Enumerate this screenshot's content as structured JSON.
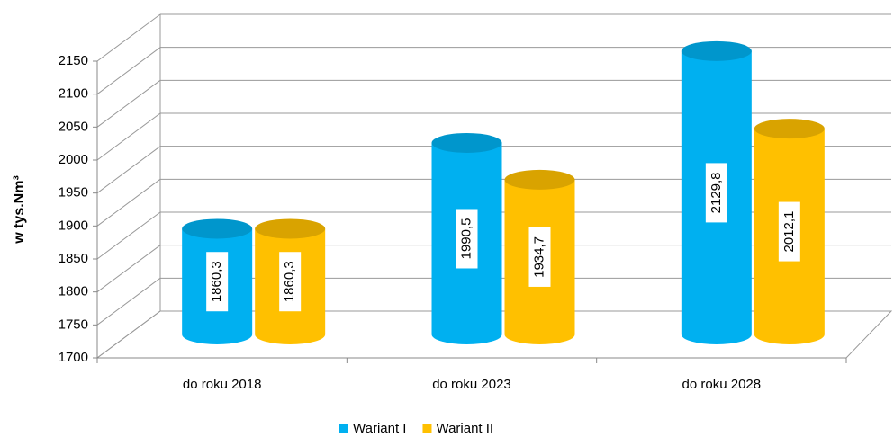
{
  "chart_data": {
    "type": "bar",
    "y_label": "w tys.Nm³",
    "categories": [
      "do roku 2018",
      "do roku 2023",
      "do roku 2028"
    ],
    "series": [
      {
        "name": "Wariant I",
        "color": "#00b0f0",
        "values": [
          1860.3,
          1990.5,
          2129.8
        ],
        "value_labels": [
          "1860,3",
          "1990,5",
          "2129,8"
        ]
      },
      {
        "name": "Wariant II",
        "color": "#ffc000",
        "values": [
          1860.3,
          1934.7,
          2012.1
        ],
        "value_labels": [
          "1860,3",
          "1934,7",
          "2012,1"
        ]
      }
    ],
    "ylim": [
      1700,
      2150
    ],
    "yticks": [
      1700,
      1750,
      1800,
      1850,
      1900,
      1950,
      2000,
      2050,
      2100,
      2150
    ],
    "grid": true,
    "legend": "bottom"
  }
}
